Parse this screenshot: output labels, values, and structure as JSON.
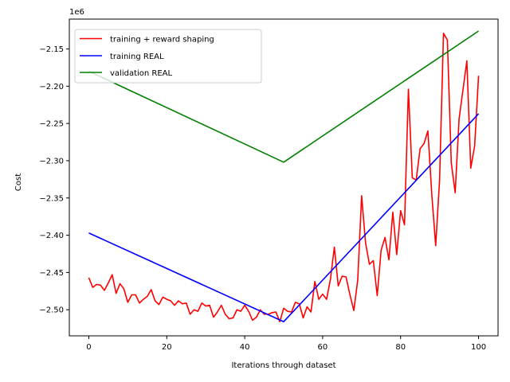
{
  "chart_data": {
    "type": "line",
    "xlabel": "Iterations through dataset",
    "ylabel": "Cost",
    "offset_label": "1e6",
    "xlim": [
      -5,
      105
    ],
    "ylim": [
      -2.535,
      -2.11
    ],
    "x_ticks": [
      0,
      20,
      40,
      60,
      80,
      100
    ],
    "y_ticks": [
      -2.5,
      -2.45,
      -2.4,
      -2.35,
      -2.3,
      -2.25,
      -2.2,
      -2.15
    ],
    "y_tick_labels": [
      "−2.50",
      "−2.45",
      "−2.40",
      "−2.35",
      "−2.30",
      "−2.25",
      "−2.20",
      "−2.15"
    ],
    "grid": false,
    "legend_position": "top-left",
    "series": [
      {
        "name": "training + reward shaping",
        "color": "#ff0000",
        "x": [
          0,
          1,
          2,
          3,
          4,
          5,
          6,
          7,
          8,
          9,
          10,
          11,
          12,
          13,
          14,
          15,
          16,
          17,
          18,
          19,
          20,
          21,
          22,
          23,
          24,
          25,
          26,
          27,
          28,
          29,
          30,
          31,
          32,
          33,
          34,
          35,
          36,
          37,
          38,
          39,
          40,
          41,
          42,
          43,
          44,
          45,
          46,
          47,
          48,
          49,
          50,
          51,
          52,
          53,
          54,
          55,
          56,
          57,
          58,
          59,
          60,
          61,
          62,
          63,
          64,
          65,
          66,
          67,
          68,
          69,
          70,
          71,
          72,
          73,
          74,
          75,
          76,
          77,
          78,
          79,
          80,
          81,
          82,
          83,
          84,
          85,
          86,
          87,
          88,
          89,
          90,
          91,
          92,
          93,
          94,
          95,
          96,
          97,
          98,
          99,
          100
        ],
        "y": [
          -2.457,
          -2.47,
          -2.466,
          -2.467,
          -2.474,
          -2.464,
          -2.453,
          -2.478,
          -2.465,
          -2.472,
          -2.49,
          -2.48,
          -2.48,
          -2.491,
          -2.486,
          -2.482,
          -2.473,
          -2.488,
          -2.493,
          -2.483,
          -2.486,
          -2.488,
          -2.494,
          -2.488,
          -2.492,
          -2.491,
          -2.506,
          -2.5,
          -2.502,
          -2.491,
          -2.495,
          -2.494,
          -2.51,
          -2.503,
          -2.494,
          -2.506,
          -2.512,
          -2.511,
          -2.5,
          -2.502,
          -2.494,
          -2.502,
          -2.514,
          -2.51,
          -2.5,
          -2.506,
          -2.506,
          -2.504,
          -2.503,
          -2.516,
          -2.498,
          -2.502,
          -2.503,
          -2.49,
          -2.492,
          -2.511,
          -2.496,
          -2.503,
          -2.462,
          -2.486,
          -2.479,
          -2.486,
          -2.459,
          -2.416,
          -2.468,
          -2.455,
          -2.456,
          -2.48,
          -2.501,
          -2.46,
          -2.347,
          -2.41,
          -2.439,
          -2.434,
          -2.481,
          -2.42,
          -2.403,
          -2.433,
          -2.369,
          -2.426,
          -2.367,
          -2.386,
          -2.204,
          -2.323,
          -2.326,
          -2.284,
          -2.277,
          -2.26,
          -2.345,
          -2.414,
          -2.326,
          -2.129,
          -2.138,
          -2.303,
          -2.343,
          -2.244,
          -2.205,
          -2.166,
          -2.31,
          -2.28,
          -2.186
        ]
      },
      {
        "name": "training REAL",
        "color": "#0000ff",
        "x": [
          0,
          50,
          100
        ],
        "y": [
          -2.397,
          -2.516,
          -2.237
        ]
      },
      {
        "name": "validation REAL",
        "color": "#008000",
        "x": [
          0,
          50,
          100
        ],
        "y": [
          -2.18,
          -2.302,
          -2.126
        ]
      }
    ]
  }
}
